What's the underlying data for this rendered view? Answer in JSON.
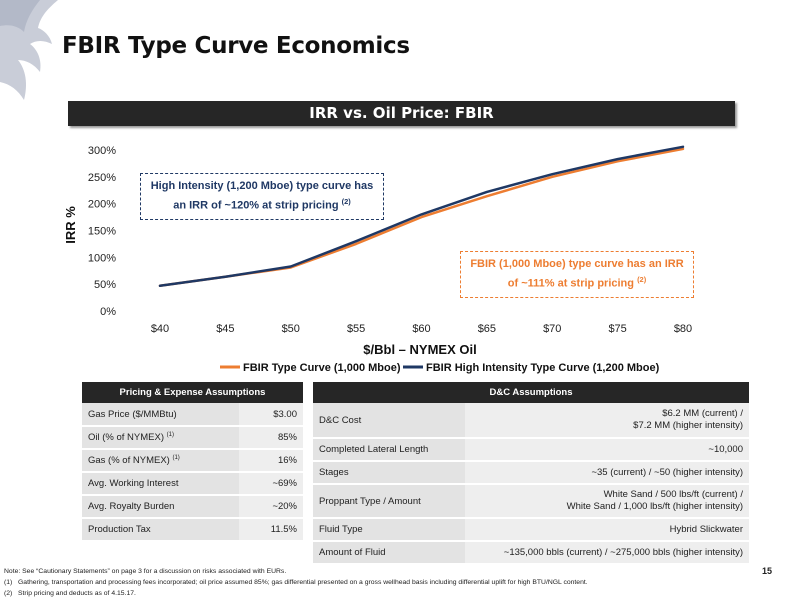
{
  "page": {
    "title": "FBIR Type Curve Economics",
    "page_number": "15",
    "notes_main": "Note: See “Cautionary Statements” on page 3 for a discussion on risks associated with EURs.",
    "footnotes": [
      {
        "num": "(1)",
        "text": "Gathering, transportation and processing fees incorporated; oil price assumed 85%; gas differential presented on a gross wellhead basis including differential uplift for high BTU/NGL content."
      },
      {
        "num": "(2)",
        "text": "Strip pricing and deducts as of 4.15.17."
      }
    ]
  },
  "chart_banner": "IRR vs. Oil Price: FBIR",
  "chart_data": {
    "type": "line",
    "title": "IRR vs. Oil Price: FBIR",
    "xlabel": "$/Bbl – NYMEX Oil",
    "ylabel": "IRR %",
    "categories": [
      "$40",
      "$45",
      "$50",
      "$55",
      "$60",
      "$65",
      "$70",
      "$75",
      "$80"
    ],
    "x": [
      40,
      45,
      50,
      55,
      60,
      65,
      70,
      75,
      80
    ],
    "y_ticks": [
      "0%",
      "50%",
      "100%",
      "150%",
      "200%",
      "250%",
      "300%"
    ],
    "ylim": [
      0,
      300
    ],
    "grid": false,
    "legend_position": "bottom",
    "series": [
      {
        "name": "FBIR Type Curve (1,000 Mboe)",
        "color": "#ED7D31",
        "values": [
          47,
          64,
          81,
          125,
          175,
          214,
          250,
          279,
          302
        ]
      },
      {
        "name": "FBIR High Intensity Type Curve (1,200 Mboe)",
        "color": "#1F3864",
        "values": [
          47,
          64,
          83,
          130,
          180,
          222,
          255,
          283,
          306
        ]
      }
    ],
    "annotations": [
      {
        "text": "High Intensity (1,200 Mboe) type curve has an IRR of ~120% at strip pricing",
        "sup": "(2)",
        "color": "#1F3864"
      },
      {
        "text": "FBIR (1,000 Mboe) type curve has an IRR of ~111% at strip pricing",
        "sup": "(2)",
        "color": "#ED7D31"
      }
    ]
  },
  "pricing_table": {
    "header": "Pricing & Expense Assumptions",
    "rows": [
      {
        "label": "Gas Price ($/MMBtu)",
        "sup": "",
        "value": "$3.00"
      },
      {
        "label": "Oil (% of NYMEX)",
        "sup": "(1)",
        "value": "85%"
      },
      {
        "label": "Gas (% of NYMEX)",
        "sup": "(1)",
        "value": "16%"
      },
      {
        "label": "Avg. Working Interest",
        "sup": "",
        "value": "~69%"
      },
      {
        "label": "Avg. Royalty Burden",
        "sup": "",
        "value": "~20%"
      },
      {
        "label": "Production Tax",
        "sup": "",
        "value": "11.5%"
      }
    ]
  },
  "dc_table": {
    "header": "D&C Assumptions",
    "rows": [
      {
        "label": "D&C Cost",
        "value_lines": [
          "$6.2 MM (current) /",
          "$7.2 MM (higher intensity)"
        ]
      },
      {
        "label": "Completed Lateral Length",
        "value_lines": [
          "~10,000"
        ]
      },
      {
        "label": "Stages",
        "value_lines": [
          "~35 (current) / ~50 (higher intensity)"
        ]
      },
      {
        "label": "Proppant Type / Amount",
        "value_lines": [
          "White Sand / 500 lbs/ft (current) /",
          "White Sand / 1,000 lbs/ft (higher intensity)"
        ]
      },
      {
        "label": "Fluid Type",
        "value_lines": [
          "Hybrid Slickwater"
        ]
      },
      {
        "label": "Amount of Fluid",
        "value_lines": [
          "~135,000 bbls (current) / ~275,000 bbls (higher intensity)"
        ]
      }
    ]
  }
}
